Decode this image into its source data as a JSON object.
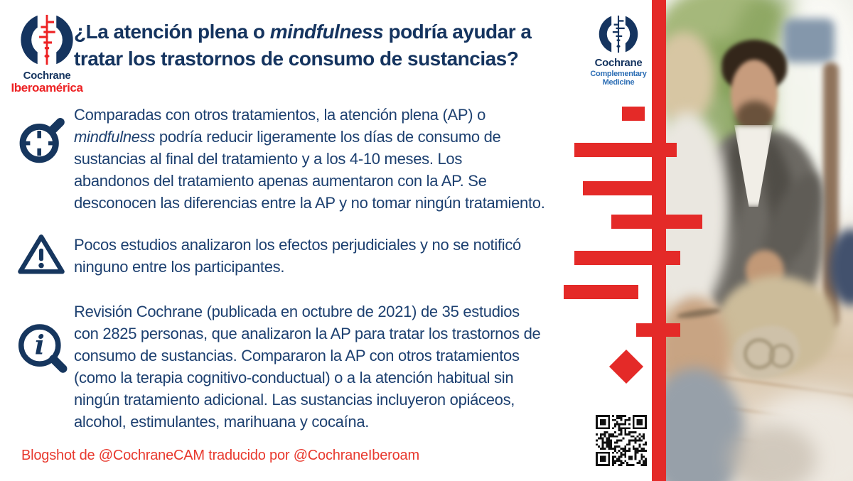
{
  "colors": {
    "navy_title": "#15345f",
    "navy_body": "#1d4070",
    "red_graphic": "#e42a28",
    "red_logo": "#ed2224",
    "red_footer": "#e8392e",
    "cam_blue": "#2e6fb5"
  },
  "logo_left": {
    "name": "Cochrane",
    "subtitle": "Iberoamérica"
  },
  "logo_right": {
    "name": "Cochrane",
    "subtitle": "Complementary Medicine"
  },
  "title": {
    "lines": [
      [
        {
          "t": "¿La atención plena o "
        },
        {
          "t": "mindfulness",
          "i": true
        },
        {
          "t": " podría ayudar a"
        }
      ],
      [
        {
          "t": "tratar los trastornos de consumo de sustancias?"
        }
      ]
    ]
  },
  "sections": [
    {
      "icon": "target-magnifier-icon",
      "lines": [
        [
          {
            "t": "Comparadas con otros tratamientos, la atención plena (AP) o"
          }
        ],
        [
          {
            "t": "mindfulness",
            "i": true
          },
          {
            "t": " podría reducir ligeramente los días de consumo de"
          }
        ],
        [
          {
            "t": "sustancias al final del tratamiento y a los 4-10 meses. Los"
          }
        ],
        [
          {
            "t": "abandonos del tratamiento apenas aumentaron con la AP. Se"
          }
        ],
        [
          {
            "t": "desconocen las diferencias entre la AP y no tomar ningún tratamiento."
          }
        ]
      ]
    },
    {
      "icon": "warning-icon",
      "lines": [
        [
          {
            "t": "Pocos estudios analizaron los efectos perjudiciales y no se notificó"
          }
        ],
        [
          {
            "t": "ninguno entre los participantes."
          }
        ]
      ]
    },
    {
      "icon": "info-magnifier-icon",
      "lines": [
        [
          {
            "t": "Revisión Cochrane (publicada en octubre de 2021) de 35 estudios"
          }
        ],
        [
          {
            "t": "con 2825 personas, que analizaron la AP para tratar los trastornos de"
          }
        ],
        [
          {
            "t": "consumo de sustancias. Compararon la AP con otros tratamientos"
          }
        ],
        [
          {
            "t": "(como la terapia cognitivo-conductual) o a la atención habitual sin"
          }
        ],
        [
          {
            "t": "ningún tratamiento adicional. Las sustancias incluyeron opiáceos,"
          }
        ],
        [
          {
            "t": "alcohol, estimulantes, marihuana y cocaína."
          }
        ]
      ]
    }
  ],
  "footer": {
    "text": "Blogshot de @CochraneCAM traducido por @CochraneIberoam"
  }
}
